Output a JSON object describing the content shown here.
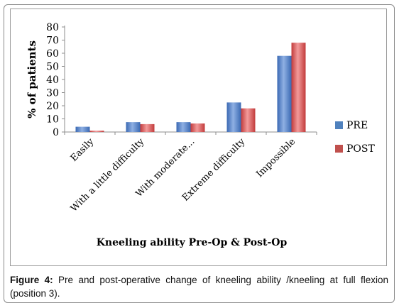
{
  "chart_data": {
    "type": "bar",
    "categories": [
      "Easily",
      "With a little difficulty",
      "With moderate...",
      "Extreme difficulty",
      "Impossible"
    ],
    "series": [
      {
        "name": "PRE",
        "values": [
          4,
          7.5,
          7.5,
          22.5,
          58
        ],
        "color": "#4f81bd"
      },
      {
        "name": "POST",
        "values": [
          1,
          6,
          6.5,
          18,
          68
        ],
        "color": "#c0504d"
      }
    ],
    "ylabel": "% of patients",
    "xlabel": "Kneeling ability Pre-Op & Post-Op",
    "ylim": [
      0,
      80
    ],
    "yticks": [
      0,
      10,
      20,
      30,
      40,
      50,
      60,
      70,
      80
    ],
    "grid": false,
    "legend_position": "right"
  },
  "caption": {
    "label": "Figure 4:",
    "text": " Pre and post-operative change of kneeling ability /kneeling at full flexion (position 3)."
  }
}
